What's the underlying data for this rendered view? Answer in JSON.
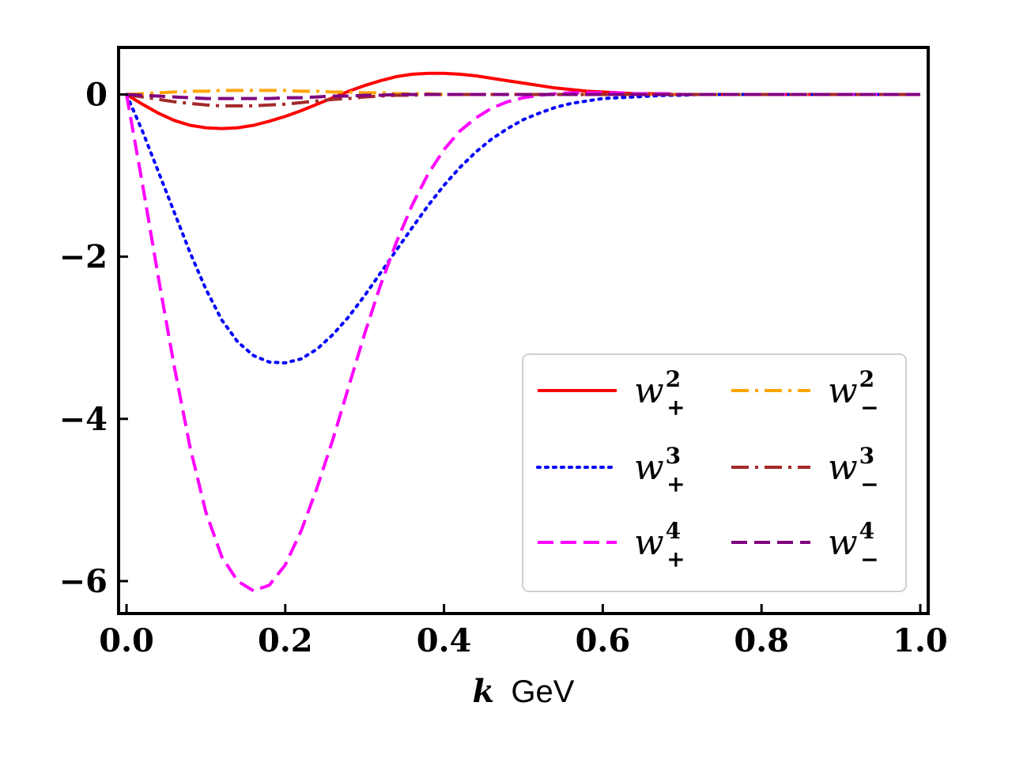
{
  "chart_data": {
    "type": "line",
    "title": "",
    "xlabel_var": "k",
    "xlabel_unit": "GeV",
    "ylabel": "",
    "xlim": [
      -0.01,
      1.01
    ],
    "ylim": [
      -6.4,
      0.58
    ],
    "x_ticks": [
      0.0,
      0.2,
      0.4,
      0.6,
      0.8,
      1.0
    ],
    "x_tick_labels": [
      "0.0",
      "0.2",
      "0.4",
      "0.6",
      "0.8",
      "1.0"
    ],
    "y_ticks": [
      0,
      -2,
      -4,
      -6
    ],
    "y_tick_labels": [
      "0",
      "−2",
      "−4",
      "−6"
    ],
    "grid": false,
    "legend_position": "lower-right",
    "x": [
      0.0,
      0.02,
      0.04,
      0.06,
      0.08,
      0.1,
      0.12,
      0.14,
      0.16,
      0.18,
      0.2,
      0.22,
      0.24,
      0.26,
      0.28,
      0.3,
      0.32,
      0.34,
      0.36,
      0.38,
      0.4,
      0.42,
      0.44,
      0.46,
      0.48,
      0.5,
      0.52,
      0.54,
      0.56,
      0.58,
      0.6,
      0.62,
      0.64,
      0.66,
      0.68,
      0.7,
      0.72,
      0.74,
      0.76,
      0.78,
      0.8,
      0.82,
      0.84,
      0.86,
      0.88,
      0.9,
      0.92,
      0.94,
      0.96,
      0.98,
      1.0
    ],
    "series": [
      {
        "name": "w_+^2",
        "base": "w",
        "sup": "2",
        "sub": "+",
        "color": "#ff0000",
        "dash": "solid",
        "values": [
          0.0,
          -0.12,
          -0.23,
          -0.32,
          -0.38,
          -0.41,
          -0.42,
          -0.41,
          -0.38,
          -0.33,
          -0.27,
          -0.2,
          -0.12,
          -0.04,
          0.04,
          0.11,
          0.17,
          0.22,
          0.25,
          0.26,
          0.26,
          0.25,
          0.23,
          0.2,
          0.17,
          0.14,
          0.11,
          0.08,
          0.06,
          0.04,
          0.03,
          0.02,
          0.01,
          0.01,
          0.0,
          0.0,
          0.0,
          0.0,
          0.0,
          0.0,
          0.0,
          0.0,
          0.0,
          0.0,
          0.0,
          0.0,
          0.0,
          0.0,
          0.0,
          0.0,
          0.0
        ]
      },
      {
        "name": "w_+^3",
        "base": "w",
        "sup": "3",
        "sub": "+",
        "color": "#0000ff",
        "dash": "dotted",
        "values": [
          0.0,
          -0.45,
          -0.95,
          -1.45,
          -1.95,
          -2.4,
          -2.78,
          -3.05,
          -3.22,
          -3.3,
          -3.31,
          -3.26,
          -3.14,
          -2.96,
          -2.74,
          -2.48,
          -2.2,
          -1.92,
          -1.64,
          -1.37,
          -1.12,
          -0.9,
          -0.71,
          -0.55,
          -0.42,
          -0.31,
          -0.23,
          -0.16,
          -0.11,
          -0.08,
          -0.05,
          -0.04,
          -0.03,
          -0.02,
          -0.01,
          -0.01,
          0.0,
          0.0,
          0.0,
          0.0,
          0.0,
          0.0,
          0.0,
          0.0,
          0.0,
          0.0,
          0.0,
          0.0,
          0.0,
          0.0,
          0.0
        ]
      },
      {
        "name": "w_+^4",
        "base": "w",
        "sup": "4",
        "sub": "+",
        "color": "#ff00ff",
        "dash": "dashed",
        "values": [
          0.0,
          -1.1,
          -2.25,
          -3.35,
          -4.35,
          -5.15,
          -5.7,
          -6.0,
          -6.12,
          -6.05,
          -5.8,
          -5.38,
          -4.85,
          -4.25,
          -3.6,
          -2.95,
          -2.35,
          -1.82,
          -1.36,
          -0.98,
          -0.68,
          -0.45,
          -0.29,
          -0.17,
          -0.09,
          -0.04,
          -0.01,
          0.01,
          0.02,
          0.02,
          0.02,
          0.02,
          0.01,
          0.01,
          0.01,
          0.0,
          0.0,
          0.0,
          0.0,
          0.0,
          0.0,
          0.0,
          0.0,
          0.0,
          0.0,
          0.0,
          0.0,
          0.0,
          0.0,
          0.0,
          0.0
        ]
      },
      {
        "name": "w_-^2",
        "base": "w",
        "sup": "2",
        "sub": "−",
        "color": "#ffa500",
        "dash": "dashdot",
        "values": [
          0.0,
          0.01,
          0.02,
          0.03,
          0.04,
          0.04,
          0.05,
          0.05,
          0.05,
          0.05,
          0.05,
          0.04,
          0.04,
          0.03,
          0.03,
          0.02,
          0.02,
          0.01,
          0.01,
          0.01,
          0.0,
          0.0,
          0.0,
          0.0,
          0.0,
          0.0,
          0.0,
          0.0,
          0.0,
          0.0,
          0.0,
          0.0,
          0.0,
          0.0,
          0.0,
          0.0,
          0.0,
          0.0,
          0.0,
          0.0,
          0.0,
          0.0,
          0.0,
          0.0,
          0.0,
          0.0,
          0.0,
          0.0,
          0.0,
          0.0,
          0.0
        ]
      },
      {
        "name": "w_-^3",
        "base": "w",
        "sup": "3",
        "sub": "−",
        "color": "#a52a2a",
        "dash": "dashdot",
        "values": [
          0.0,
          -0.03,
          -0.06,
          -0.09,
          -0.11,
          -0.13,
          -0.14,
          -0.14,
          -0.14,
          -0.13,
          -0.12,
          -0.1,
          -0.08,
          -0.06,
          -0.05,
          -0.03,
          -0.02,
          -0.01,
          -0.01,
          0.0,
          0.0,
          0.0,
          0.0,
          0.0,
          0.0,
          0.0,
          0.0,
          0.0,
          0.0,
          0.0,
          0.0,
          0.0,
          0.0,
          0.0,
          0.0,
          0.0,
          0.0,
          0.0,
          0.0,
          0.0,
          0.0,
          0.0,
          0.0,
          0.0,
          0.0,
          0.0,
          0.0,
          0.0,
          0.0,
          0.0,
          0.0
        ]
      },
      {
        "name": "w_-^4",
        "base": "w",
        "sup": "4",
        "sub": "−",
        "color": "#800080",
        "dash": "dashed",
        "values": [
          0.0,
          -0.01,
          -0.02,
          -0.03,
          -0.04,
          -0.05,
          -0.05,
          -0.05,
          -0.05,
          -0.05,
          -0.04,
          -0.04,
          -0.03,
          -0.02,
          -0.02,
          -0.01,
          -0.01,
          0.0,
          0.0,
          0.0,
          0.0,
          0.0,
          0.0,
          0.0,
          0.0,
          0.0,
          0.0,
          0.0,
          0.0,
          0.0,
          0.0,
          0.0,
          0.0,
          0.0,
          0.0,
          0.0,
          0.0,
          0.0,
          0.0,
          0.0,
          0.0,
          0.0,
          0.0,
          0.0,
          0.0,
          0.0,
          0.0,
          0.0,
          0.0,
          0.0,
          0.0
        ]
      }
    ]
  }
}
